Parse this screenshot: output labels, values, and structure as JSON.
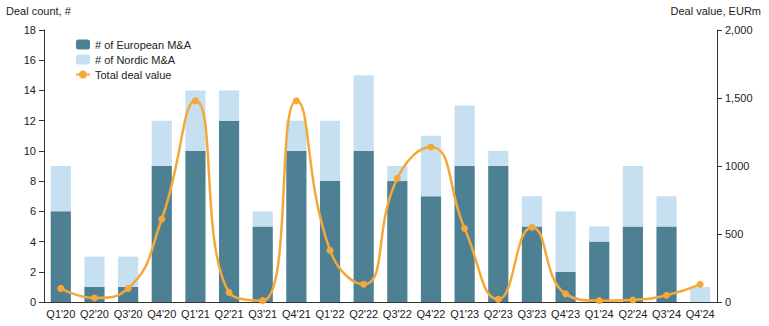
{
  "chart_data": {
    "type": "bar",
    "stacked": true,
    "grid": false,
    "legend": "top-left",
    "y_label": "Deal count, #",
    "y2_label": "Deal value, EURm",
    "categories": [
      "Q1'20",
      "Q2'20",
      "Q3'20",
      "Q4'20",
      "Q1'21",
      "Q2'21",
      "Q3'21",
      "Q4'21",
      "Q1'22",
      "Q2'22",
      "Q3'22",
      "Q4'22",
      "Q1'23",
      "Q2'23",
      "Q3'23",
      "Q4'23",
      "Q1'24",
      "Q2'24",
      "Q3'24",
      "Q4'24"
    ],
    "ylim": [
      0,
      18
    ],
    "yticks": [
      0,
      2,
      4,
      6,
      8,
      10,
      12,
      14,
      16,
      18
    ],
    "y2lim": [
      0,
      2000
    ],
    "y2ticks": [
      0,
      500,
      1000,
      {
        "value": 1500,
        "label": "1,500"
      },
      {
        "value": 2000,
        "label": "2,000"
      }
    ],
    "series": [
      {
        "name": "# of European M&A",
        "type": "bar",
        "color": "#4e8094",
        "values": [
          6,
          1,
          1,
          9,
          10,
          12,
          5,
          10,
          8,
          10,
          8,
          7,
          9,
          9,
          5,
          2,
          4,
          5,
          5,
          0
        ]
      },
      {
        "name": "# of Nordic M&A",
        "type": "bar",
        "color": "#c6e0f2",
        "values": [
          3,
          2,
          2,
          3,
          4,
          2,
          1,
          2,
          4,
          5,
          1,
          4,
          4,
          1,
          2,
          4,
          1,
          4,
          2,
          1
        ]
      },
      {
        "name": "Total deal value",
        "type": "line",
        "axis": "y2",
        "color": "#f5a83a",
        "marker": "circle",
        "line_style": "smooth",
        "values": [
          100,
          30,
          100,
          610,
          1480,
          70,
          10,
          1480,
          380,
          130,
          910,
          1140,
          540,
          20,
          550,
          60,
          10,
          15,
          50,
          130
        ]
      }
    ]
  }
}
